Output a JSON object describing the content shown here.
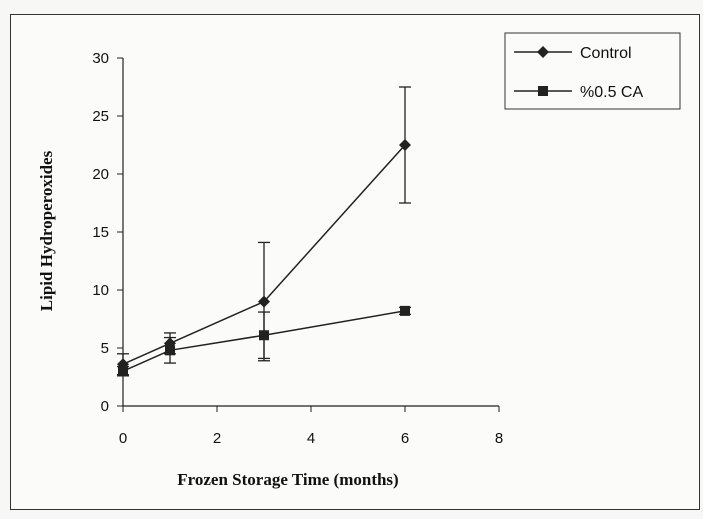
{
  "chart_data": {
    "type": "line",
    "xlabel": "Frozen Storage Time (months)",
    "ylabel": "Lipid Hydroperoxides",
    "xlim": [
      0,
      8
    ],
    "ylim": [
      0,
      30
    ],
    "x_ticks": [
      "0",
      "2",
      "4",
      "6",
      "8"
    ],
    "y_ticks": [
      "0",
      "5",
      "10",
      "15",
      "20",
      "25",
      "30"
    ],
    "grid": false,
    "legend_position": "top-right",
    "series": [
      {
        "name": "Control",
        "marker": "diamond",
        "color": "#222222",
        "x": [
          0,
          1,
          3,
          6
        ],
        "y": [
          3.6,
          5.4,
          9.0,
          22.5
        ],
        "err": [
          0.9,
          0.9,
          5.1,
          5.0
        ]
      },
      {
        "name": "%0.5 CA",
        "marker": "square",
        "color": "#222222",
        "x": [
          0,
          1,
          3,
          6
        ],
        "y": [
          3.0,
          4.8,
          6.1,
          8.2
        ],
        "err": [
          0.4,
          1.1,
          2.0,
          0.3
        ]
      }
    ]
  }
}
